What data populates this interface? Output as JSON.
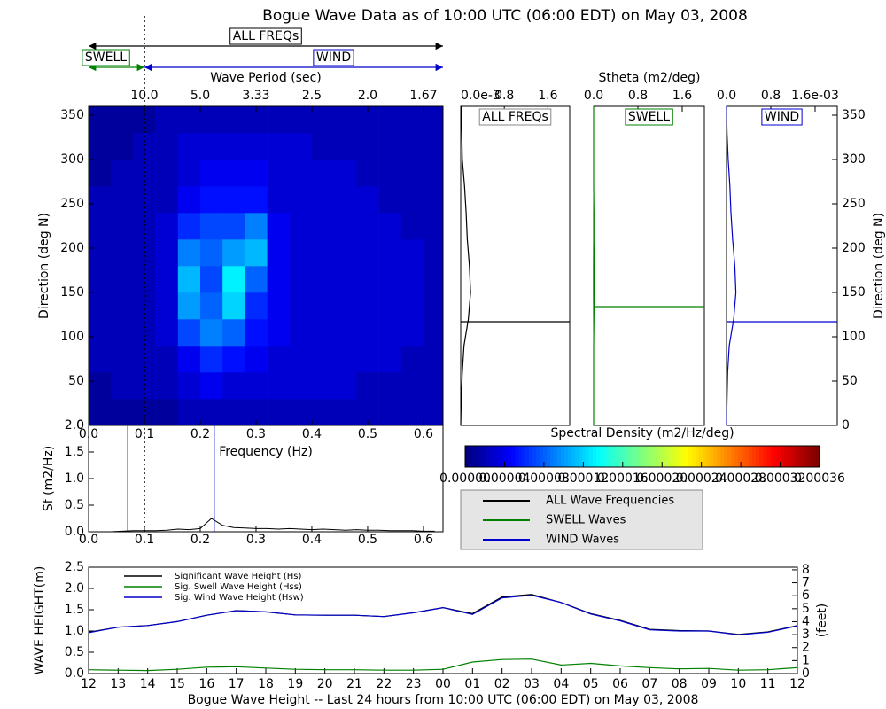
{
  "title": "Bogue Wave Data as of 10:00 UTC (06:00 EDT) on May 03, 2008",
  "chart_data": [
    {
      "type": "heatmap",
      "xlabel": "Frequency (Hz)",
      "ylabel": "Direction (deg N)",
      "top_xlabel": "Wave Period (sec)",
      "x_bins": [
        0,
        0.04,
        0.08,
        0.12,
        0.16,
        0.2,
        0.24,
        0.28,
        0.32,
        0.36,
        0.4,
        0.44,
        0.48,
        0.52,
        0.56,
        0.6,
        0.64
      ],
      "y_bins": [
        0,
        30,
        60,
        90,
        120,
        150,
        180,
        210,
        240,
        270,
        300,
        330,
        360
      ],
      "z": [
        [
          1e-05,
          1e-05,
          1e-05,
          1e-05,
          2e-05,
          2e-05,
          2e-05,
          2e-05,
          2e-05,
          2e-05,
          2e-05,
          2e-05,
          2e-05,
          2e-05,
          2e-05,
          2e-05
        ],
        [
          1e-05,
          2e-05,
          2e-05,
          2e-05,
          3e-05,
          4e-05,
          3e-05,
          3e-05,
          3e-05,
          3e-05,
          3e-05,
          3e-05,
          2e-05,
          2e-05,
          2e-05,
          2e-05
        ],
        [
          2e-05,
          2e-05,
          2e-05,
          2e-05,
          4e-05,
          6e-05,
          5e-05,
          4e-05,
          3e-05,
          3e-05,
          3e-05,
          3e-05,
          3e-05,
          3e-05,
          2e-05,
          2e-05
        ],
        [
          2e-05,
          2e-05,
          2e-05,
          3e-05,
          7e-05,
          9e-05,
          8e-05,
          5e-05,
          4e-05,
          3e-05,
          3e-05,
          3e-05,
          3e-05,
          3e-05,
          3e-05,
          2e-05
        ],
        [
          2e-05,
          2e-05,
          2e-05,
          3e-05,
          0.0001,
          8e-05,
          0.00012,
          6e-05,
          4e-05,
          3e-05,
          3e-05,
          3e-05,
          3e-05,
          3e-05,
          3e-05,
          2e-05
        ],
        [
          2e-05,
          2e-05,
          2e-05,
          3e-05,
          0.00011,
          7e-05,
          0.00013,
          8e-05,
          4e-05,
          3e-05,
          3e-05,
          3e-05,
          3e-05,
          3e-05,
          3e-05,
          2e-05
        ],
        [
          2e-05,
          2e-05,
          2e-05,
          3e-05,
          9e-05,
          8e-05,
          0.0001,
          0.00011,
          4e-05,
          3e-05,
          3e-05,
          3e-05,
          3e-05,
          3e-05,
          3e-05,
          2e-05
        ],
        [
          2e-05,
          2e-05,
          2e-05,
          3e-05,
          6e-05,
          7e-05,
          7e-05,
          9e-05,
          4e-05,
          3e-05,
          3e-05,
          3e-05,
          3e-05,
          3e-05,
          2e-05,
          2e-05
        ],
        [
          2e-05,
          2e-05,
          2e-05,
          2e-05,
          4e-05,
          5e-05,
          5e-05,
          5e-05,
          3e-05,
          3e-05,
          3e-05,
          3e-05,
          3e-05,
          2e-05,
          2e-05,
          2e-05
        ],
        [
          1e-05,
          2e-05,
          2e-05,
          2e-05,
          3e-05,
          4e-05,
          4e-05,
          4e-05,
          3e-05,
          3e-05,
          3e-05,
          3e-05,
          2e-05,
          2e-05,
          2e-05,
          2e-05
        ],
        [
          1e-05,
          1e-05,
          2e-05,
          2e-05,
          3e-05,
          3e-05,
          3e-05,
          3e-05,
          3e-05,
          3e-05,
          2e-05,
          2e-05,
          2e-05,
          2e-05,
          2e-05,
          2e-05
        ],
        [
          1e-05,
          1e-05,
          1e-05,
          2e-05,
          2e-05,
          2e-05,
          2e-05,
          2e-05,
          2e-05,
          2e-05,
          2e-05,
          2e-05,
          2e-05,
          2e-05,
          2e-05,
          2e-05
        ]
      ],
      "xlim": [
        0,
        0.635
      ],
      "ylim": [
        0,
        360
      ],
      "xticks": [
        {
          "value": 0,
          "label": "0.0"
        },
        0.1,
        0.2,
        0.3,
        0.4,
        0.5,
        0.6
      ],
      "yticks": [
        0,
        50,
        100,
        150,
        200,
        250,
        300,
        350
      ],
      "top_xticks": [
        {
          "value": 0.1,
          "label": "10.0"
        },
        {
          "value": 0.2,
          "label": "5.0"
        },
        {
          "value": 0.3,
          "label": "3.33"
        },
        {
          "value": 0.4,
          "label": "2.5"
        },
        {
          "value": 0.5,
          "label": "2.0"
        },
        {
          "value": 0.6,
          "label": "1.67"
        }
      ],
      "separation": 0.1,
      "bands": [
        {
          "label": "ALL FREQs",
          "color": "#000000",
          "from": 0,
          "to": 0.635
        },
        {
          "label": "SWELL",
          "color": "#008000",
          "from": 0,
          "to": 0.1
        },
        {
          "label": "WIND",
          "color": "#0000cc",
          "from": 0.1,
          "to": 0.635
        }
      ],
      "colorbar": {
        "title": "Spectral Density (m2/Hz/deg)",
        "lim": [
          0,
          0.00036
        ],
        "ticks": [
          {
            "value": 0,
            "label": "0.00000"
          },
          {
            "value": 4e-05,
            "label": "0.00004"
          },
          {
            "value": 8e-05,
            "label": "0.00008"
          },
          {
            "value": 0.00012,
            "label": "0.00012"
          },
          {
            "value": 0.00016,
            "label": "0.00016"
          },
          {
            "value": 0.0002,
            "label": "0.00020"
          },
          {
            "value": 0.00024,
            "label": "0.00024"
          },
          {
            "value": 0.00028,
            "label": "0.00028"
          },
          {
            "value": 0.00032,
            "label": "0.00032"
          },
          {
            "value": 0.00036,
            "label": "0.00036"
          }
        ]
      }
    },
    {
      "type": "direction",
      "title": "ALL FREQs",
      "xlabel": "Stheta (m2/deg)",
      "color": "#000000",
      "xlim": [
        0,
        2.0
      ],
      "ylim": [
        0,
        360
      ],
      "xticks": [
        {
          "value": 0,
          "label": "0.0e-3"
        },
        0.8,
        1.6
      ],
      "directions": [
        0,
        30,
        60,
        90,
        120,
        150,
        180,
        210,
        240,
        270,
        300,
        330,
        360
      ],
      "values": [
        0,
        0.01,
        0.03,
        0.06,
        0.14,
        0.18,
        0.16,
        0.12,
        0.1,
        0.07,
        0.03,
        0.02,
        0.01
      ],
      "mean_direction": 117
    },
    {
      "type": "direction",
      "title": "SWELL",
      "color": "#008000",
      "xlim": [
        0,
        2.0
      ],
      "ylim": [
        0,
        360
      ],
      "xticks": [
        {
          "value": 0,
          "label": "0.0"
        },
        0.8,
        1.6
      ],
      "directions": [
        0,
        30,
        60,
        90,
        120,
        150,
        180,
        210,
        240,
        270,
        300,
        330,
        360
      ],
      "values": [
        0,
        0,
        0,
        0,
        0.005,
        0.01,
        0.01,
        0.005,
        0.005,
        0,
        0,
        0,
        0
      ],
      "mean_direction": 134
    },
    {
      "type": "direction",
      "title": "WIND",
      "color": "#0000cc",
      "xlim": [
        0,
        2.0
      ],
      "ylim": [
        0,
        360
      ],
      "xticks": [
        {
          "value": 0,
          "label": "0.0"
        },
        0.8,
        {
          "value": 1.6,
          "label": "1.6e-03"
        }
      ],
      "yticks": [
        0,
        50,
        100,
        150,
        200,
        250,
        300,
        350
      ],
      "ylabel": "Direction (deg N)",
      "directions": [
        0,
        30,
        60,
        90,
        120,
        150,
        180,
        210,
        240,
        270,
        300,
        330,
        360
      ],
      "values": [
        0,
        0.01,
        0.02,
        0.05,
        0.13,
        0.17,
        0.15,
        0.11,
        0.08,
        0.06,
        0.03,
        0.01,
        0
      ],
      "mean_direction": 117
    },
    {
      "type": "spectrum",
      "ylabel": "Sf (m2/Hz)",
      "xlim": [
        0,
        0.635
      ],
      "ylim": [
        0,
        2.0
      ],
      "xticks": [
        {
          "value": 0,
          "label": "0.0"
        },
        0.1,
        0.2,
        0.3,
        0.4,
        0.5,
        0.6
      ],
      "yticks": [
        {
          "value": 0,
          "label": "0.0"
        },
        0.5,
        {
          "value": 1,
          "label": "1.0"
        },
        1.5,
        {
          "value": 2,
          "label": "2.0"
        }
      ],
      "x": [
        0,
        0.02,
        0.04,
        0.06,
        0.08,
        0.1,
        0.12,
        0.14,
        0.16,
        0.18,
        0.2,
        0.22,
        0.24,
        0.26,
        0.28,
        0.3,
        0.32,
        0.34,
        0.36,
        0.38,
        0.4,
        0.42,
        0.44,
        0.46,
        0.48,
        0.5,
        0.52,
        0.54,
        0.56,
        0.58,
        0.6,
        0.62
      ],
      "series": [
        {
          "name": "ALL Wave Frequencies",
          "color": "#000000",
          "values": [
            0,
            0,
            0,
            0.01,
            0.02,
            0.02,
            0.02,
            0.03,
            0.05,
            0.04,
            0.06,
            0.25,
            0.12,
            0.08,
            0.07,
            0.06,
            0.06,
            0.05,
            0.06,
            0.05,
            0.04,
            0.05,
            0.04,
            0.03,
            0.04,
            0.03,
            0.03,
            0.02,
            0.02,
            0.02,
            0.01,
            0.01
          ]
        }
      ],
      "markers": [
        {
          "name": "SWELL Waves",
          "color": "#008000",
          "value": 0.07
        },
        {
          "name": "WIND Waves",
          "color": "#0000cc",
          "value": 0.225
        }
      ]
    },
    {
      "type": "line",
      "xlabel": "Bogue Wave Height -- Last 24 hours from 10:00 UTC (06:00 EDT) on May 03, 2008",
      "ylabel": "WAVE HEIGHT(m)",
      "y2label": "(feet)",
      "categories": [
        "12",
        "13",
        "14",
        "15",
        "16",
        "17",
        "18",
        "19",
        "20",
        "21",
        "22",
        "23",
        "00",
        "01",
        "02",
        "03",
        "04",
        "05",
        "06",
        "07",
        "08",
        "09",
        "10",
        "11",
        "12"
      ],
      "ylim": [
        0,
        2.5
      ],
      "yticks": [
        {
          "value": 0,
          "label": "0.0"
        },
        0.5,
        {
          "value": 1,
          "label": "1.0"
        },
        1.5,
        {
          "value": 2,
          "label": "2.0"
        },
        2.5
      ],
      "y2lim": [
        0,
        8.2
      ],
      "y2ticks": [
        0,
        1,
        2,
        3,
        4,
        5,
        6,
        7,
        8
      ],
      "series": [
        {
          "name": "Significant Wave Height (Hs)",
          "color": "#000000",
          "values": [
            0.97,
            1.09,
            1.13,
            1.22,
            1.37,
            1.48,
            1.45,
            1.38,
            1.37,
            1.37,
            1.34,
            1.43,
            1.55,
            1.41,
            1.8,
            1.86,
            1.67,
            1.41,
            1.25,
            1.04,
            1.01,
            1.0,
            0.92,
            0.98,
            1.13
          ]
        },
        {
          "name": "Sig. Swell Wave Height (Hss)",
          "color": "#008000",
          "values": [
            0.09,
            0.08,
            0.07,
            0.1,
            0.15,
            0.16,
            0.13,
            0.1,
            0.09,
            0.09,
            0.08,
            0.08,
            0.1,
            0.27,
            0.33,
            0.34,
            0.2,
            0.24,
            0.18,
            0.14,
            0.11,
            0.12,
            0.08,
            0.09,
            0.14
          ]
        },
        {
          "name": "Sig. Wind Wave Height (Hsw)",
          "color": "#0000cc",
          "values": [
            0.96,
            1.09,
            1.13,
            1.22,
            1.37,
            1.48,
            1.45,
            1.38,
            1.37,
            1.37,
            1.34,
            1.43,
            1.55,
            1.39,
            1.78,
            1.84,
            1.67,
            1.4,
            1.24,
            1.03,
            1.0,
            1.0,
            0.91,
            0.97,
            1.12
          ]
        }
      ]
    }
  ]
}
